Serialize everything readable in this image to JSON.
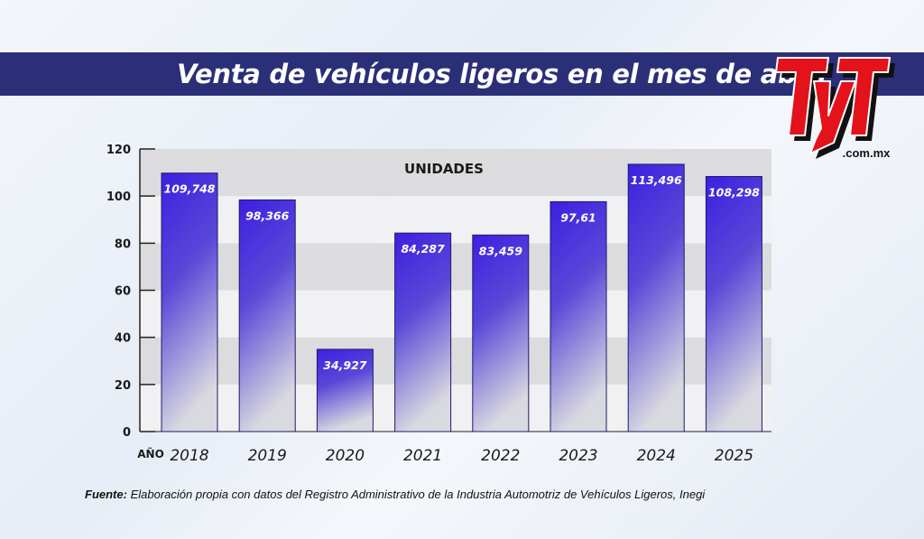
{
  "header": {
    "title": "Venta de vehículos ligeros en el mes de abril"
  },
  "logo": {
    "brand": "TyT",
    "domain": ".com.mx",
    "colors": {
      "red": "#e3121b",
      "black": "#111111"
    }
  },
  "chart_data": {
    "type": "bar",
    "title": "",
    "band_label": "UNIDADES",
    "xlabel": "AÑO",
    "ylabel": "",
    "categories": [
      "2018",
      "2019",
      "2020",
      "2021",
      "2022",
      "2023",
      "2024",
      "2025"
    ],
    "values": [
      109.748,
      98.366,
      34.927,
      84.287,
      83.459,
      97.61,
      113.496,
      108.298
    ],
    "value_labels": [
      "109,748",
      "98,366",
      "34,927",
      "84,287",
      "83,459",
      "97,61",
      "113,496",
      "108,298"
    ],
    "ylim": [
      0,
      120
    ],
    "yticks": [
      0,
      20,
      40,
      60,
      80,
      100,
      120
    ],
    "grid": true,
    "legend": "none",
    "colors": {
      "bar_top": "#3d1fe0",
      "bar_bottom": "#d6d6de",
      "band_dark": "#dcdcde",
      "band_light": "#f1f1f3"
    }
  },
  "footer": {
    "label": "Fuente:",
    "text": " Elaboración propia con datos del Registro Administrativo de la Industria Automotriz de Vehículos Ligeros, Inegi"
  }
}
